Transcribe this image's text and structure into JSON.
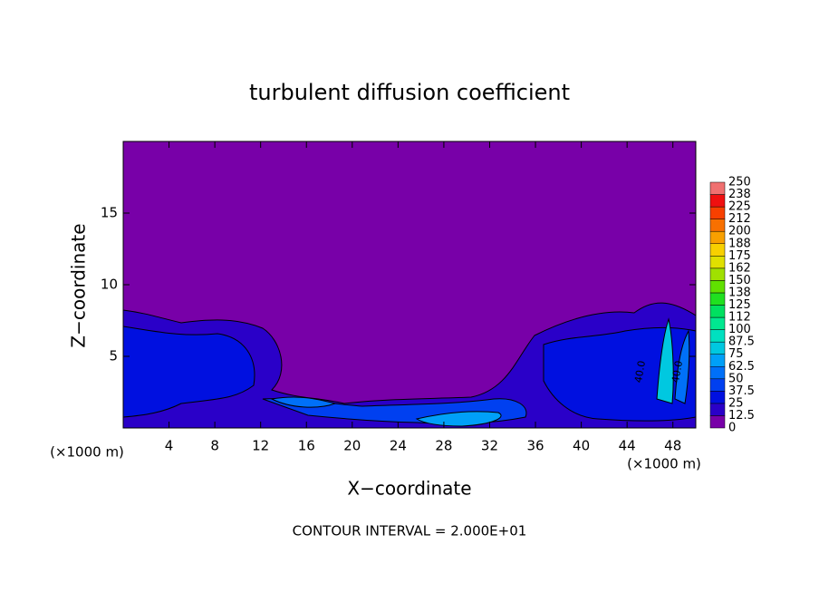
{
  "chart_data": {
    "type": "contour",
    "title": "turbulent diffusion coefficient",
    "x_label": "X−coordinate",
    "y_label": "Z−coordinate",
    "x_unit": "(×1000 m)",
    "y_unit": "(×1000 m)",
    "footer": "CONTOUR INTERVAL = 2.000E+01",
    "xlim": [
      0,
      50
    ],
    "ylim": [
      0,
      20
    ],
    "xticks": [
      4,
      8,
      12,
      16,
      20,
      24,
      28,
      32,
      36,
      40,
      44,
      48
    ],
    "yticks": [
      5,
      10,
      15
    ],
    "contour_labels": [
      "40.0",
      "40.0"
    ],
    "colorbar": {
      "levels": [
        0,
        12.5,
        25,
        37.5,
        50,
        62.5,
        75,
        87.5,
        100,
        {
          "value": 112.5,
          "label": "112"
        },
        125,
        {
          "value": 137.5,
          "label": "138"
        },
        150,
        {
          "value": 162.5,
          "label": "162"
        },
        175,
        {
          "value": 187.5,
          "label": "188"
        },
        200,
        {
          "value": 212.5,
          "label": "212"
        },
        225,
        {
          "value": 237.5,
          "label": "238"
        },
        250
      ],
      "colors": [
        "#7800a8",
        "#2a00c8",
        "#0010e0",
        "#0040f0",
        "#0070f8",
        "#00a0f8",
        "#00c8e0",
        "#00e0c0",
        "#00e890",
        "#00e060",
        "#20e020",
        "#60e000",
        "#a0e000",
        "#e0e000",
        "#f8d000",
        "#f8a000",
        "#f87000",
        "#f84000",
        "#f01010",
        "#f07070"
      ]
    }
  }
}
